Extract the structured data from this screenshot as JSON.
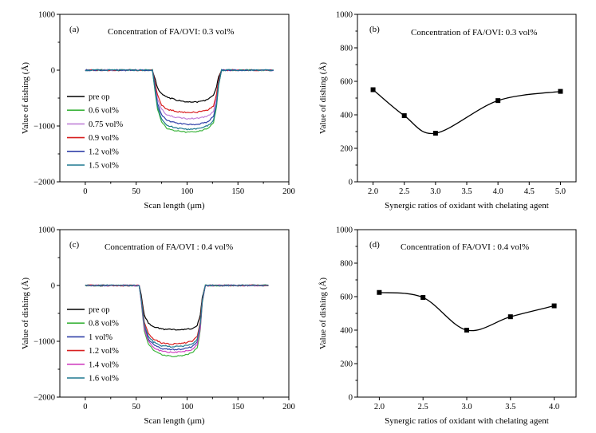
{
  "chart_data": [
    {
      "id": "a",
      "type": "line",
      "panel_label": "(a)",
      "annotation": "Concentration of FA/OVI: 0.3 vol%",
      "xlabel": "Scan length (μm)",
      "ylabel": "Value of dishing (Å)",
      "xlim": [
        -25,
        200
      ],
      "ylim": [
        -2000,
        1000
      ],
      "xticks": [
        0,
        50,
        100,
        150,
        200
      ],
      "yticks": [
        -2000,
        -1000,
        0,
        1000
      ],
      "legend_position": "lower-left",
      "series": [
        {
          "name": "pre op",
          "color": "#000000",
          "x": [
            0,
            66,
            68,
            71,
            75,
            80,
            90,
            100,
            110,
            120,
            126,
            129,
            131,
            134,
            170
          ],
          "y": [
            0,
            0,
            -120,
            -320,
            -420,
            -480,
            -540,
            -570,
            -570,
            -530,
            -450,
            -300,
            -120,
            0,
            0
          ]
        },
        {
          "name": "0.6 vol%",
          "color": "#3cb43c",
          "x": [
            0,
            66,
            68,
            71,
            75,
            80,
            90,
            100,
            110,
            120,
            126,
            129,
            131,
            134,
            185
          ],
          "y": [
            0,
            0,
            -300,
            -700,
            -930,
            -1040,
            -1090,
            -1110,
            -1100,
            -1050,
            -940,
            -650,
            -280,
            0,
            0
          ]
        },
        {
          "name": "0.75 vol%",
          "color": "#c080d8",
          "x": [
            0,
            66,
            68,
            71,
            75,
            80,
            90,
            100,
            110,
            120,
            126,
            129,
            131,
            134,
            185
          ],
          "y": [
            0,
            0,
            -200,
            -520,
            -700,
            -800,
            -850,
            -870,
            -860,
            -830,
            -740,
            -500,
            -200,
            0,
            0
          ]
        },
        {
          "name": "0.9 vol%",
          "color": "#d82020",
          "x": [
            0,
            66,
            68,
            71,
            75,
            80,
            90,
            100,
            110,
            120,
            126,
            129,
            131,
            134,
            185
          ],
          "y": [
            0,
            0,
            -180,
            -450,
            -620,
            -700,
            -740,
            -760,
            -750,
            -720,
            -640,
            -430,
            -180,
            0,
            0
          ]
        },
        {
          "name": "1.2 vol%",
          "color": "#3040a8",
          "x": [
            0,
            66,
            68,
            71,
            75,
            80,
            90,
            100,
            110,
            120,
            126,
            129,
            131,
            134,
            185
          ],
          "y": [
            0,
            0,
            -240,
            -600,
            -800,
            -900,
            -950,
            -970,
            -970,
            -930,
            -830,
            -580,
            -240,
            0,
            0
          ]
        },
        {
          "name": "1.5 vol%",
          "color": "#1e7890",
          "x": [
            0,
            66,
            68,
            71,
            75,
            80,
            90,
            100,
            110,
            120,
            126,
            129,
            131,
            134,
            185
          ],
          "y": [
            0,
            0,
            -280,
            -660,
            -880,
            -990,
            -1040,
            -1060,
            -1050,
            -1000,
            -900,
            -620,
            -260,
            0,
            0
          ]
        }
      ]
    },
    {
      "id": "b",
      "type": "line",
      "panel_label": "(b)",
      "annotation": "Concentration of FA/OVI: 0.3  vol%",
      "xlabel": "Synergic ratios of oxidant with chelating agent",
      "ylabel": "Value of dishing (Å)",
      "xlim": [
        1.75,
        5.25
      ],
      "ylim": [
        0,
        1000
      ],
      "xticks": [
        2.0,
        2.5,
        3.0,
        3.5,
        4.0,
        4.5,
        5.0
      ],
      "yticks": [
        0,
        200,
        400,
        600,
        800,
        1000
      ],
      "series": [
        {
          "name": "",
          "color": "#000000",
          "x": [
            2.0,
            2.5,
            3.0,
            4.0,
            5.0
          ],
          "y": [
            550,
            395,
            290,
            485,
            540
          ]
        }
      ]
    },
    {
      "id": "c",
      "type": "line",
      "panel_label": "(c)",
      "annotation": "Concentration of FA/OVI : 0.4 vol%",
      "xlabel": "Scan length (μm)",
      "ylabel": "Value of dishing (Å)",
      "xlim": [
        -25,
        200
      ],
      "ylim": [
        -2000,
        1000
      ],
      "xticks": [
        0,
        50,
        100,
        150,
        200
      ],
      "yticks": [
        -2000,
        -1000,
        0,
        1000
      ],
      "legend_position": "lower-left",
      "series": [
        {
          "name": "pre op",
          "color": "#000000",
          "x": [
            0,
            53,
            55,
            58,
            62,
            67,
            75,
            85,
            95,
            105,
            110,
            113,
            115,
            118,
            180
          ],
          "y": [
            0,
            0,
            -180,
            -530,
            -680,
            -740,
            -780,
            -790,
            -790,
            -770,
            -720,
            -520,
            -200,
            0,
            0
          ]
        },
        {
          "name": "0.8 vol%",
          "color": "#3cb43c",
          "x": [
            0,
            53,
            55,
            58,
            62,
            67,
            75,
            85,
            95,
            105,
            110,
            113,
            115,
            118,
            180
          ],
          "y": [
            0,
            0,
            -300,
            -820,
            -1050,
            -1160,
            -1240,
            -1270,
            -1260,
            -1210,
            -1120,
            -800,
            -300,
            0,
            0
          ]
        },
        {
          "name": "1 vol%",
          "color": "#3040a8",
          "x": [
            0,
            53,
            55,
            58,
            62,
            67,
            75,
            85,
            95,
            105,
            110,
            113,
            115,
            118,
            180
          ],
          "y": [
            0,
            0,
            -260,
            -740,
            -960,
            -1060,
            -1130,
            -1150,
            -1140,
            -1100,
            -1010,
            -720,
            -270,
            0,
            0
          ]
        },
        {
          "name": "1.2 vol%",
          "color": "#d82020",
          "x": [
            0,
            53,
            55,
            58,
            62,
            67,
            75,
            85,
            95,
            105,
            110,
            113,
            115,
            118,
            180
          ],
          "y": [
            0,
            0,
            -220,
            -650,
            -860,
            -960,
            -1030,
            -1050,
            -1040,
            -1000,
            -920,
            -650,
            -240,
            0,
            0
          ]
        },
        {
          "name": "1.4 vol%",
          "color": "#d040c0",
          "x": [
            0,
            53,
            55,
            58,
            62,
            67,
            75,
            85,
            95,
            105,
            110,
            113,
            115,
            118,
            180
          ],
          "y": [
            0,
            0,
            -280,
            -780,
            -1000,
            -1110,
            -1180,
            -1200,
            -1190,
            -1150,
            -1060,
            -760,
            -280,
            0,
            0
          ]
        },
        {
          "name": "1.6 vol%",
          "color": "#1e7890",
          "x": [
            0,
            53,
            55,
            58,
            62,
            67,
            75,
            85,
            95,
            105,
            110,
            113,
            115,
            118,
            180
          ],
          "y": [
            0,
            0,
            -250,
            -700,
            -910,
            -1010,
            -1080,
            -1100,
            -1090,
            -1050,
            -970,
            -690,
            -260,
            0,
            0
          ]
        }
      ]
    },
    {
      "id": "d",
      "type": "line",
      "panel_label": "(d)",
      "annotation": "Concentration of FA/OVI : 0.4 vol%",
      "xlabel": "Synergic ratios of oxidant with chelating agent",
      "ylabel": "Value of dishing (Å)",
      "xlim": [
        1.75,
        4.25
      ],
      "ylim": [
        0,
        1000
      ],
      "xticks": [
        2.0,
        2.5,
        3.0,
        3.5,
        4.0
      ],
      "yticks": [
        0,
        200,
        400,
        600,
        800,
        1000
      ],
      "series": [
        {
          "name": "",
          "color": "#000000",
          "x": [
            2.0,
            2.5,
            3.0,
            3.5,
            4.0
          ],
          "y": [
            625,
            595,
            400,
            480,
            545
          ]
        }
      ]
    }
  ]
}
